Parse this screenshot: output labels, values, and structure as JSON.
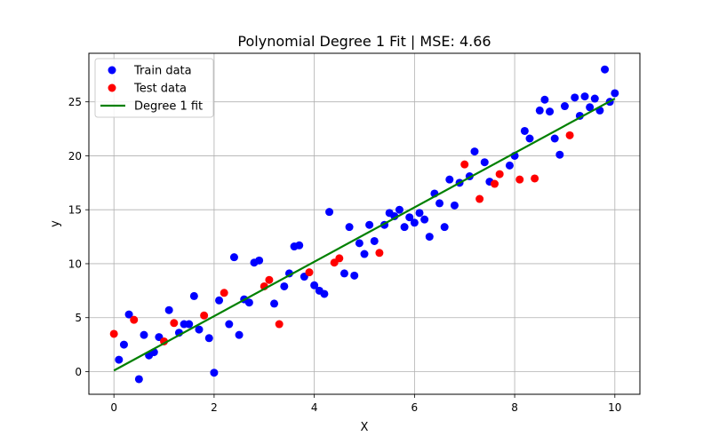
{
  "chart_data": {
    "type": "scatter",
    "title": "Polynomial Degree 1 Fit | MSE: 4.66",
    "xlabel": "X",
    "ylabel": "y",
    "xlim": [
      -0.5,
      10.5
    ],
    "ylim": [
      -2.1,
      29.5
    ],
    "xticks": [
      0,
      2,
      4,
      6,
      8,
      10
    ],
    "yticks": [
      0,
      5,
      10,
      15,
      20,
      25
    ],
    "grid": true,
    "legend_position": "top-left",
    "series": [
      {
        "name": "Train data",
        "kind": "scatter",
        "color": "#0000ff",
        "points": [
          [
            0.1,
            1.1
          ],
          [
            0.2,
            2.5
          ],
          [
            0.3,
            5.3
          ],
          [
            0.5,
            -0.7
          ],
          [
            0.6,
            3.4
          ],
          [
            0.7,
            1.5
          ],
          [
            0.8,
            1.8
          ],
          [
            0.9,
            3.2
          ],
          [
            1.1,
            5.7
          ],
          [
            1.3,
            3.6
          ],
          [
            1.4,
            4.4
          ],
          [
            1.5,
            4.4
          ],
          [
            1.6,
            7.0
          ],
          [
            1.7,
            3.9
          ],
          [
            1.9,
            3.1
          ],
          [
            2.0,
            -0.1
          ],
          [
            2.1,
            6.6
          ],
          [
            2.3,
            4.4
          ],
          [
            2.4,
            10.6
          ],
          [
            2.5,
            3.4
          ],
          [
            2.6,
            6.7
          ],
          [
            2.7,
            6.4
          ],
          [
            2.8,
            10.1
          ],
          [
            2.9,
            10.3
          ],
          [
            3.2,
            6.3
          ],
          [
            3.4,
            7.9
          ],
          [
            3.5,
            9.1
          ],
          [
            3.6,
            11.6
          ],
          [
            3.7,
            11.7
          ],
          [
            3.8,
            8.8
          ],
          [
            4.0,
            8.0
          ],
          [
            4.1,
            7.5
          ],
          [
            4.2,
            7.2
          ],
          [
            4.3,
            14.8
          ],
          [
            4.6,
            9.1
          ],
          [
            4.7,
            13.4
          ],
          [
            4.8,
            8.9
          ],
          [
            4.9,
            11.9
          ],
          [
            5.0,
            10.9
          ],
          [
            5.1,
            13.6
          ],
          [
            5.2,
            12.1
          ],
          [
            5.4,
            13.6
          ],
          [
            5.5,
            14.7
          ],
          [
            5.6,
            14.4
          ],
          [
            5.7,
            15.0
          ],
          [
            5.8,
            13.4
          ],
          [
            5.9,
            14.3
          ],
          [
            6.0,
            13.8
          ],
          [
            6.1,
            14.7
          ],
          [
            6.2,
            14.1
          ],
          [
            6.3,
            12.5
          ],
          [
            6.4,
            16.5
          ],
          [
            6.5,
            15.6
          ],
          [
            6.6,
            13.4
          ],
          [
            6.7,
            17.8
          ],
          [
            6.8,
            15.4
          ],
          [
            6.9,
            17.5
          ],
          [
            7.1,
            18.1
          ],
          [
            7.2,
            20.4
          ],
          [
            7.4,
            19.4
          ],
          [
            7.5,
            17.6
          ],
          [
            7.9,
            19.1
          ],
          [
            8.0,
            20.0
          ],
          [
            8.2,
            22.3
          ],
          [
            8.3,
            21.6
          ],
          [
            8.5,
            24.2
          ],
          [
            8.6,
            25.2
          ],
          [
            8.7,
            24.1
          ],
          [
            8.8,
            21.6
          ],
          [
            8.9,
            20.1
          ],
          [
            9.0,
            24.6
          ],
          [
            9.2,
            25.4
          ],
          [
            9.3,
            23.7
          ],
          [
            9.4,
            25.5
          ],
          [
            9.5,
            24.5
          ],
          [
            9.6,
            25.3
          ],
          [
            9.7,
            24.2
          ],
          [
            9.8,
            28.0
          ],
          [
            9.9,
            25.0
          ],
          [
            10.0,
            25.8
          ]
        ]
      },
      {
        "name": "Test data",
        "kind": "scatter",
        "color": "#ff0000",
        "points": [
          [
            0.0,
            3.5
          ],
          [
            0.4,
            4.8
          ],
          [
            1.0,
            2.8
          ],
          [
            1.2,
            4.5
          ],
          [
            1.8,
            5.2
          ],
          [
            2.2,
            7.3
          ],
          [
            3.0,
            7.9
          ],
          [
            3.1,
            8.5
          ],
          [
            3.3,
            4.4
          ],
          [
            3.9,
            9.2
          ],
          [
            4.4,
            10.1
          ],
          [
            4.5,
            10.5
          ],
          [
            5.3,
            11.0
          ],
          [
            7.0,
            19.2
          ],
          [
            7.3,
            16.0
          ],
          [
            7.6,
            17.4
          ],
          [
            7.7,
            18.3
          ],
          [
            8.1,
            17.8
          ],
          [
            8.4,
            17.9
          ],
          [
            9.1,
            21.9
          ]
        ]
      },
      {
        "name": "Degree 1 fit",
        "kind": "line",
        "color": "#008000",
        "points": [
          [
            0.0,
            0.1
          ],
          [
            10.0,
            25.3
          ]
        ]
      }
    ]
  }
}
